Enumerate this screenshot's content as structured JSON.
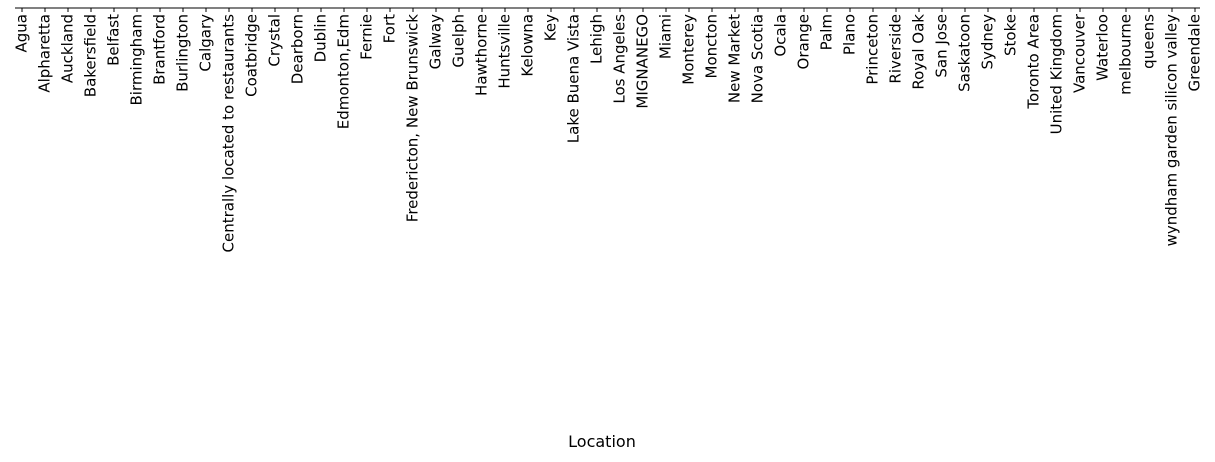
{
  "chart_data": {
    "type": "bar",
    "x_label": "Location",
    "categories": [
      "Agua",
      "Alpharetta",
      "Auckland",
      "Bakersfield",
      "Belfast",
      "Birmingham",
      "Brantford",
      "Burlington",
      "Calgary",
      "Centrally located to restaurants",
      "Coatbridge",
      "Crystal",
      "Dearborn",
      "Dublin",
      "Edmonton,Edm",
      "Fernie",
      "Fort",
      "Fredericton, New Brunswick",
      "Galway",
      "Guelph",
      "Hawthorne",
      "Huntsville",
      "Kelowna",
      "Key",
      "Lake Buena Vista",
      "Lehigh",
      "Los Angeles",
      "MIGNANEGO",
      "Miami",
      "Monterey",
      "Moncton",
      "New Market",
      "Nova Scotia",
      "Ocala",
      "Orange",
      "Palm",
      "Plano",
      "Princeton",
      "Riverside",
      "Royal Oak",
      "San Jose",
      "Saskatoon",
      "Sydney",
      "Stoke",
      "Toronto Area",
      "United Kingdom",
      "Vancouver",
      "Waterloo",
      "melbourne",
      "queens",
      "wyndham garden silicon valley",
      "Greendale"
    ]
  }
}
